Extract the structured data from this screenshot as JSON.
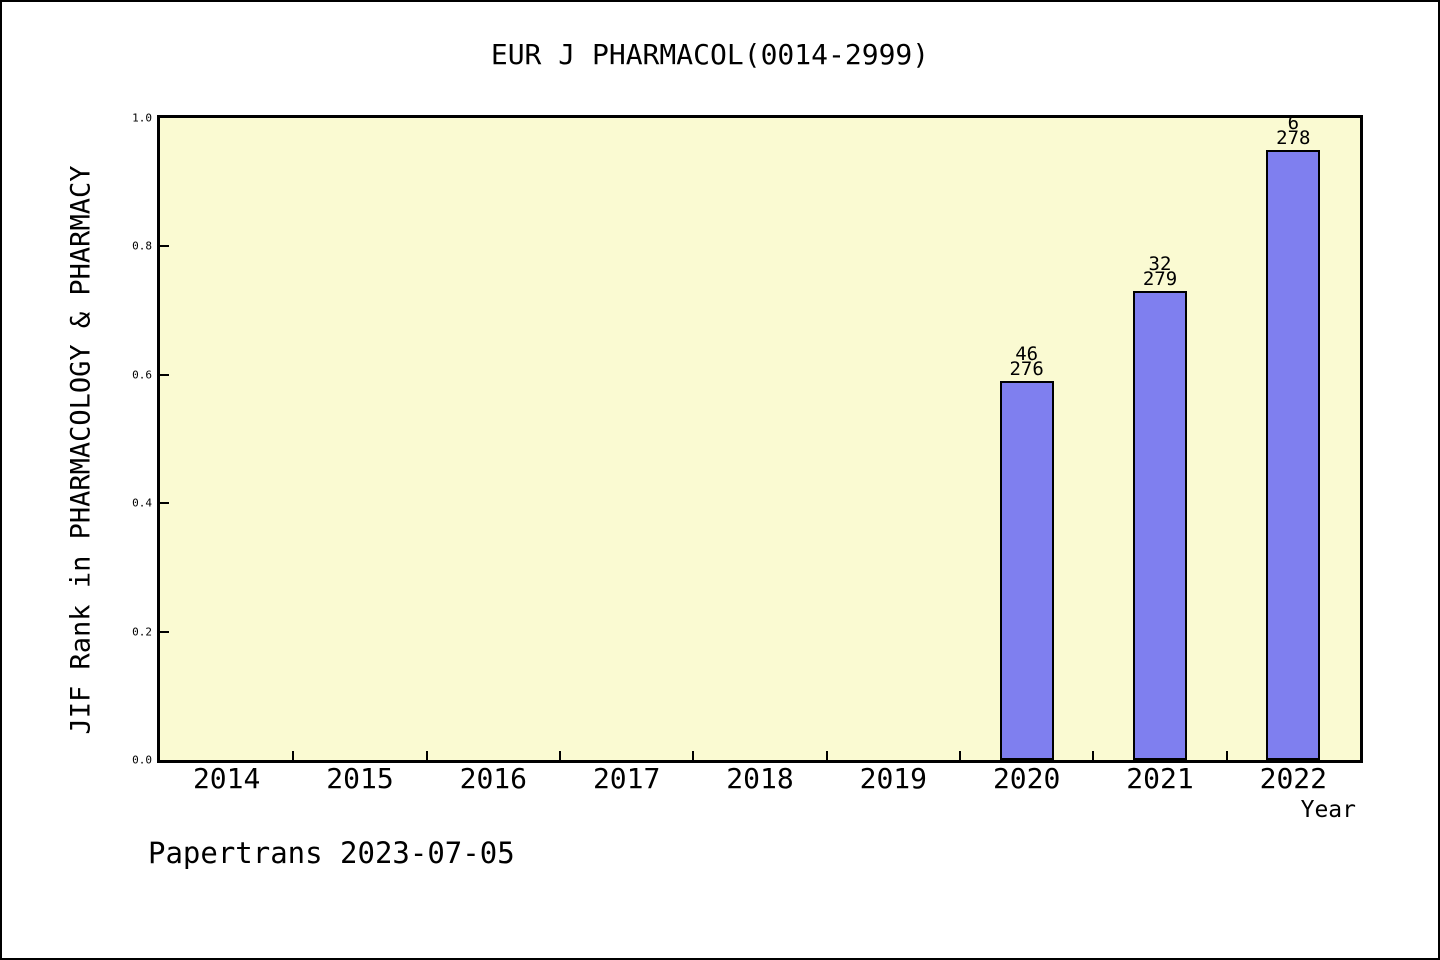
{
  "page": {
    "title": "EUR J PHARMACOL(0014-2999)",
    "footer": "Papertrans 2023-07-05"
  },
  "colors": {
    "plot_bg": "#FAFAD2",
    "bar_fill": "#7F7FEF",
    "axis": "#000000"
  },
  "chart_data": {
    "type": "bar",
    "title": "EUR J PHARMACOL(0014-2999)",
    "xlabel": "Year",
    "ylabel": "JIF Rank in PHARMACOLOGY & PHARMACY",
    "categories": [
      "2014",
      "2015",
      "2016",
      "2017",
      "2018",
      "2019",
      "2020",
      "2021",
      "2022"
    ],
    "values": [
      null,
      null,
      null,
      null,
      null,
      null,
      0.59,
      0.73,
      0.95
    ],
    "bar_annotations": [
      null,
      null,
      null,
      null,
      null,
      null,
      {
        "rank": "46",
        "total": "276"
      },
      {
        "rank": "32",
        "total": "279"
      },
      {
        "rank": "6",
        "total": "278"
      }
    ],
    "ylim": [
      0,
      1
    ],
    "yticks": [
      "0.0",
      "0.2",
      "0.4",
      "0.6",
      "0.8",
      "1.0"
    ],
    "grid": false,
    "legend": "none"
  }
}
